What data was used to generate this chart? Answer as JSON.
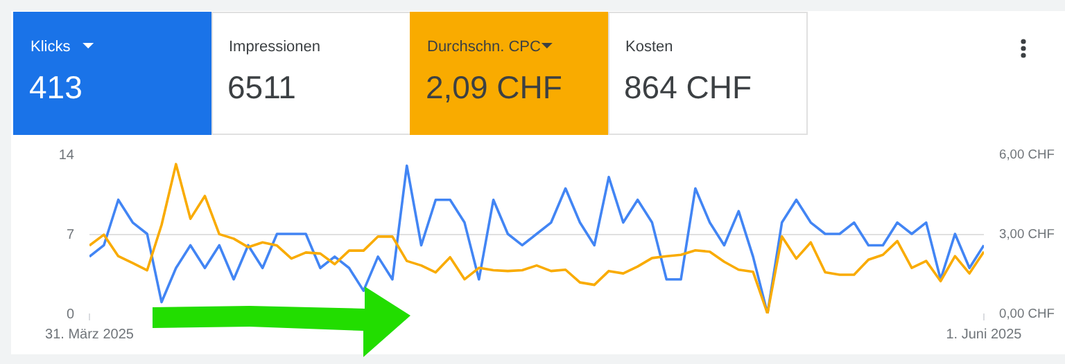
{
  "chart_data": [
    {
      "type": "other",
      "categories": [
        "Klicks",
        "Impressionen",
        "Durchschn. CPC",
        "Kosten"
      ],
      "value_labels": [
        "413",
        "6511",
        "2,09 CHF",
        "864 CHF"
      ],
      "colors": [
        "#1a73e8",
        "#ffffff",
        "#f9ab00",
        "#ffffff"
      ]
    },
    {
      "type": "line",
      "x": [
        "2025-03-31",
        "2025-04-01",
        "2025-04-02",
        "2025-04-03",
        "2025-04-04",
        "2025-04-05",
        "2025-04-06",
        "2025-04-07",
        "2025-04-08",
        "2025-04-09",
        "2025-04-10",
        "2025-04-11",
        "2025-04-12",
        "2025-04-13",
        "2025-04-14",
        "2025-04-15",
        "2025-04-16",
        "2025-04-17",
        "2025-04-18",
        "2025-04-19",
        "2025-04-20",
        "2025-04-21",
        "2025-04-22",
        "2025-04-23",
        "2025-04-24",
        "2025-04-25",
        "2025-04-26",
        "2025-04-27",
        "2025-04-28",
        "2025-04-29",
        "2025-04-30",
        "2025-05-01",
        "2025-05-02",
        "2025-05-03",
        "2025-05-04",
        "2025-05-05",
        "2025-05-06",
        "2025-05-07",
        "2025-05-08",
        "2025-05-09",
        "2025-05-10",
        "2025-05-11",
        "2025-05-12",
        "2025-05-13",
        "2025-05-14",
        "2025-05-15",
        "2025-05-16",
        "2025-05-17",
        "2025-05-18",
        "2025-05-19",
        "2025-05-20",
        "2025-05-21",
        "2025-05-22",
        "2025-05-23",
        "2025-05-24",
        "2025-05-25",
        "2025-05-26",
        "2025-05-27",
        "2025-05-28",
        "2025-05-29",
        "2025-05-30",
        "2025-05-31",
        "2025-06-01"
      ],
      "series": [
        {
          "color": "#4285f4",
          "values": [
            5,
            6,
            10,
            8,
            7,
            1,
            4,
            6,
            4,
            6,
            3,
            6,
            4,
            7,
            7,
            7,
            4,
            5,
            4,
            2,
            5,
            3,
            13,
            6,
            10,
            10,
            8,
            3,
            10,
            7,
            6,
            7,
            8,
            11,
            8,
            6,
            12,
            8,
            10,
            8,
            3,
            3,
            11,
            8,
            6,
            9,
            5,
            0,
            8,
            10,
            8,
            7,
            7,
            8,
            6,
            6,
            8,
            7,
            8,
            3,
            7,
            4,
            6
          ]
        },
        {
          "color": "#f9ab00",
          "axis": "y2",
          "values": [
            2.56,
            2.97,
            2.16,
            1.9,
            1.63,
            3.34,
            5.63,
            3.57,
            4.43,
            2.99,
            2.82,
            2.5,
            2.68,
            2.56,
            2.07,
            2.3,
            2.26,
            1.86,
            2.37,
            2.37,
            2.9,
            2.9,
            1.98,
            1.81,
            1.55,
            2.12,
            1.29,
            1.72,
            1.63,
            1.6,
            1.63,
            1.81,
            1.6,
            1.65,
            1.17,
            1.08,
            1.6,
            1.51,
            1.77,
            2.09,
            2.16,
            2.21,
            2.38,
            2.33,
            1.95,
            1.65,
            1.57,
            0,
            2.9,
            2.07,
            2.68,
            1.55,
            1.46,
            1.46,
            2.03,
            2.21,
            2.73,
            1.72,
            1.98,
            1.22,
            2.16,
            1.51,
            2.33
          ]
        }
      ],
      "xlim": [
        "2025-03-31",
        "2025-06-01"
      ],
      "xticks": [
        {
          "value": "2025-03-31",
          "label": "31. März 2025"
        },
        {
          "value": "2025-06-01",
          "label": "1. Juni 2025"
        }
      ],
      "ylim": [
        0,
        14
      ],
      "yticks": [
        0,
        7,
        14
      ],
      "y2lim": [
        0,
        6
      ],
      "y2ticks": [
        {
          "value": 0,
          "label": "0,00 CHF"
        },
        {
          "value": 3,
          "label": "3,00 CHF"
        },
        {
          "value": 6,
          "label": "6,00 CHF"
        }
      ],
      "grid": "y",
      "line_style": "solid"
    }
  ]
}
